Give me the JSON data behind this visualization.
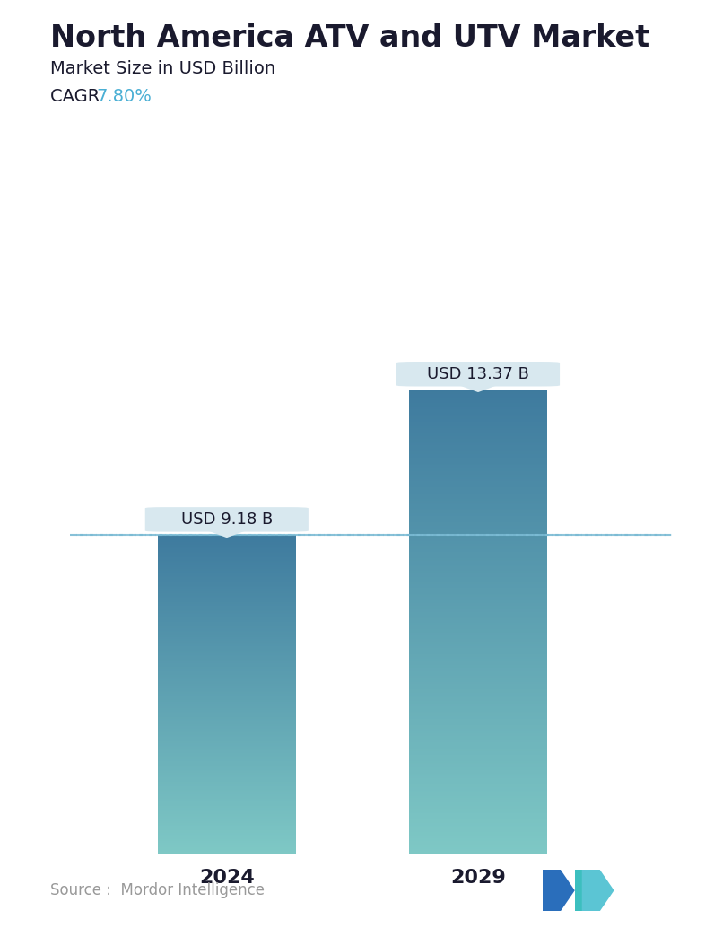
{
  "title": "North America ATV and UTV Market",
  "subtitle": "Market Size in USD Billion",
  "cagr_label": "CAGR ",
  "cagr_value": "7.80%",
  "cagr_color": "#4AAFD4",
  "categories": [
    "2024",
    "2029"
  ],
  "values": [
    9.18,
    13.37
  ],
  "bar_labels": [
    "USD 9.18 B",
    "USD 13.37 B"
  ],
  "bar_color_top": "#3E7A9E",
  "bar_color_bottom": "#7EC8C5",
  "dashed_line_color": "#7BBBD4",
  "dashed_line_value": 9.18,
  "tooltip_bg": "#D8E8EF",
  "tooltip_text_color": "#1A1A2E",
  "source_text": "Source :  Mordor Intelligence",
  "source_color": "#999999",
  "background_color": "#FFFFFF",
  "title_fontsize": 24,
  "subtitle_fontsize": 14,
  "cagr_fontsize": 14,
  "label_fontsize": 13,
  "tick_fontsize": 16,
  "source_fontsize": 12,
  "ylim": [
    0,
    15.5
  ],
  "bar_width": 0.22,
  "x_positions": [
    0.27,
    0.67
  ]
}
